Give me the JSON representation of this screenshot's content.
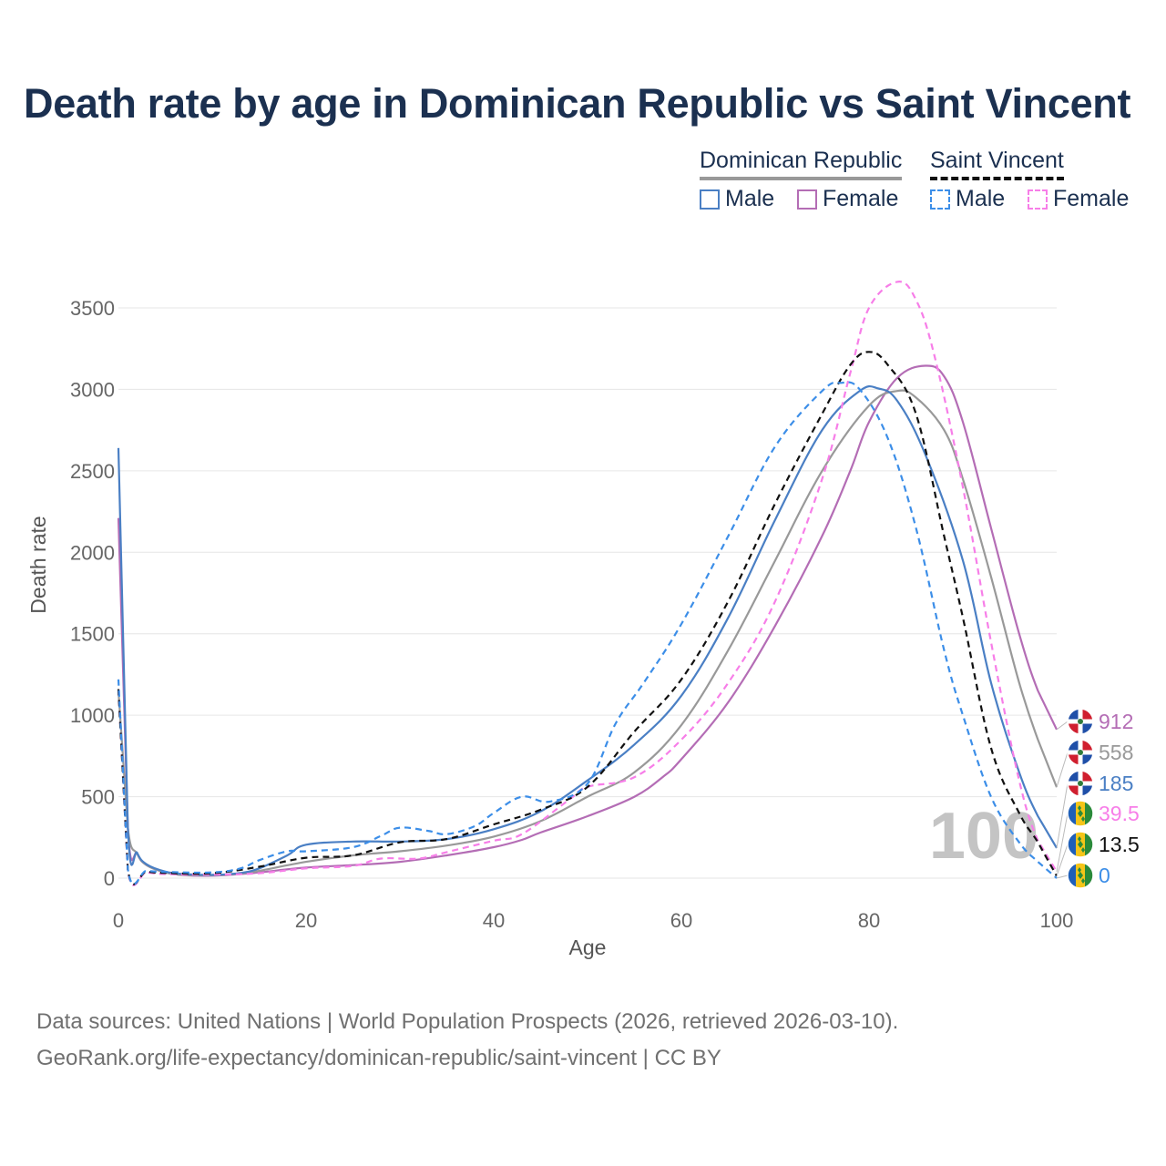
{
  "title": "Death rate by age in Dominican Republic vs Saint Vincent",
  "legend": {
    "groups": [
      {
        "label": "Dominican Republic",
        "line_style": "solid",
        "line_color": "#999999"
      },
      {
        "label": "Saint Vincent",
        "line_style": "dashed",
        "line_color": "#111111"
      }
    ],
    "items": [
      {
        "label": "Male",
        "color": "#4a7fc4",
        "style": "solid"
      },
      {
        "label": "Female",
        "color": "#b46db5",
        "style": "solid"
      },
      {
        "label": "Male",
        "color": "#3c8ee8",
        "style": "dashed"
      },
      {
        "label": "Female",
        "color": "#f77ee8",
        "style": "dashed"
      }
    ]
  },
  "overlay_age": "100",
  "footer": {
    "line1": "Data sources: United Nations | World Population Prospects (2026, retrieved 2026-03-10).",
    "line2": "GeoRank.org/life-expectancy/dominican-republic/saint-vincent | CC BY"
  },
  "chart_data": {
    "type": "line",
    "xlabel": "Age",
    "ylabel": "Death rate",
    "xlim": [
      0,
      100
    ],
    "ylim": [
      0,
      3700
    ],
    "xticks": [
      0,
      20,
      40,
      60,
      80,
      100
    ],
    "yticks": [
      0,
      500,
      1000,
      1500,
      2000,
      2500,
      3000,
      3500
    ],
    "grid": true,
    "series": [
      {
        "name": "Dominican Republic – Female",
        "color": "#b46db5",
        "dash": "",
        "end_label": "912",
        "flag": "dominican-republic",
        "points": [
          [
            0,
            2210
          ],
          [
            1,
            320
          ],
          [
            2,
            150
          ],
          [
            3,
            80
          ],
          [
            5,
            35
          ],
          [
            7,
            18
          ],
          [
            10,
            15
          ],
          [
            13,
            25
          ],
          [
            15,
            35
          ],
          [
            20,
            65
          ],
          [
            25,
            80
          ],
          [
            30,
            100
          ],
          [
            35,
            140
          ],
          [
            40,
            190
          ],
          [
            43,
            235
          ],
          [
            45,
            280
          ],
          [
            50,
            380
          ],
          [
            55,
            500
          ],
          [
            58,
            620
          ],
          [
            60,
            730
          ],
          [
            65,
            1080
          ],
          [
            70,
            1550
          ],
          [
            75,
            2100
          ],
          [
            78,
            2500
          ],
          [
            80,
            2800
          ],
          [
            83,
            3070
          ],
          [
            86,
            3145
          ],
          [
            88,
            3080
          ],
          [
            90,
            2800
          ],
          [
            93,
            2150
          ],
          [
            96,
            1500
          ],
          [
            98,
            1150
          ],
          [
            100,
            912
          ]
        ]
      },
      {
        "name": "Dominican Republic – Both",
        "color": "#999999",
        "dash": "",
        "end_label": "558",
        "flag": "dominican-republic",
        "points": [
          [
            0,
            1150
          ],
          [
            1,
            310
          ],
          [
            2,
            150
          ],
          [
            3,
            80
          ],
          [
            5,
            35
          ],
          [
            7,
            20
          ],
          [
            10,
            18
          ],
          [
            13,
            28
          ],
          [
            15,
            45
          ],
          [
            20,
            100
          ],
          [
            25,
            140
          ],
          [
            30,
            165
          ],
          [
            35,
            200
          ],
          [
            40,
            255
          ],
          [
            45,
            350
          ],
          [
            50,
            500
          ],
          [
            55,
            650
          ],
          [
            60,
            940
          ],
          [
            65,
            1400
          ],
          [
            70,
            1950
          ],
          [
            75,
            2500
          ],
          [
            80,
            2900
          ],
          [
            83,
            2990
          ],
          [
            85,
            2950
          ],
          [
            88,
            2750
          ],
          [
            90,
            2450
          ],
          [
            93,
            1850
          ],
          [
            96,
            1200
          ],
          [
            98,
            850
          ],
          [
            100,
            558
          ]
        ]
      },
      {
        "name": "Dominican Republic – Male",
        "color": "#4a7fc4",
        "dash": "",
        "end_label": "185",
        "flag": "dominican-republic",
        "points": [
          [
            0,
            2640
          ],
          [
            1,
            320
          ],
          [
            2,
            155
          ],
          [
            3,
            85
          ],
          [
            5,
            40
          ],
          [
            7,
            25
          ],
          [
            10,
            20
          ],
          [
            13,
            32
          ],
          [
            15,
            60
          ],
          [
            18,
            140
          ],
          [
            20,
            205
          ],
          [
            25,
            225
          ],
          [
            30,
            225
          ],
          [
            35,
            240
          ],
          [
            40,
            300
          ],
          [
            45,
            410
          ],
          [
            50,
            600
          ],
          [
            55,
            820
          ],
          [
            60,
            1120
          ],
          [
            65,
            1600
          ],
          [
            70,
            2200
          ],
          [
            75,
            2750
          ],
          [
            79,
            2990
          ],
          [
            81,
            3005
          ],
          [
            83,
            2930
          ],
          [
            86,
            2600
          ],
          [
            90,
            1950
          ],
          [
            93,
            1200
          ],
          [
            96,
            650
          ],
          [
            98,
            380
          ],
          [
            100,
            185
          ]
        ]
      },
      {
        "name": "Saint Vincent – Female",
        "color": "#f77ee8",
        "dash": "7,5",
        "end_label": "39.5",
        "flag": "saint-vincent",
        "points": [
          [
            0,
            1160
          ],
          [
            1,
            50
          ],
          [
            3,
            35
          ],
          [
            5,
            25
          ],
          [
            10,
            22
          ],
          [
            15,
            30
          ],
          [
            20,
            60
          ],
          [
            25,
            75
          ],
          [
            28,
            120
          ],
          [
            32,
            120
          ],
          [
            35,
            160
          ],
          [
            40,
            230
          ],
          [
            43,
            270
          ],
          [
            48,
            480
          ],
          [
            50,
            560
          ],
          [
            55,
            620
          ],
          [
            60,
            850
          ],
          [
            65,
            1200
          ],
          [
            70,
            1700
          ],
          [
            75,
            2450
          ],
          [
            78,
            3100
          ],
          [
            80,
            3500
          ],
          [
            83,
            3660
          ],
          [
            85,
            3550
          ],
          [
            87,
            3200
          ],
          [
            90,
            2400
          ],
          [
            93,
            1450
          ],
          [
            96,
            600
          ],
          [
            98,
            230
          ],
          [
            100,
            39.5
          ]
        ]
      },
      {
        "name": "Saint Vincent – Both",
        "color": "#111111",
        "dash": "7,5",
        "end_label": "13.5",
        "flag": "saint-vincent",
        "points": [
          [
            0,
            1160
          ],
          [
            1,
            55
          ],
          [
            3,
            40
          ],
          [
            5,
            32
          ],
          [
            10,
            30
          ],
          [
            15,
            70
          ],
          [
            20,
            125
          ],
          [
            25,
            140
          ],
          [
            30,
            220
          ],
          [
            35,
            240
          ],
          [
            40,
            330
          ],
          [
            45,
            420
          ],
          [
            50,
            560
          ],
          [
            55,
            900
          ],
          [
            60,
            1220
          ],
          [
            65,
            1700
          ],
          [
            70,
            2300
          ],
          [
            75,
            2850
          ],
          [
            78,
            3150
          ],
          [
            80,
            3230
          ],
          [
            82,
            3150
          ],
          [
            85,
            2850
          ],
          [
            88,
            2100
          ],
          [
            90,
            1600
          ],
          [
            93,
            800
          ],
          [
            96,
            400
          ],
          [
            98,
            220
          ],
          [
            100,
            13.5
          ]
        ]
      },
      {
        "name": "Saint Vincent – Male",
        "color": "#3c8ee8",
        "dash": "7,5",
        "end_label": "0",
        "flag": "saint-vincent",
        "points": [
          [
            0,
            1220
          ],
          [
            1,
            60
          ],
          [
            3,
            45
          ],
          [
            5,
            38
          ],
          [
            10,
            35
          ],
          [
            13,
            60
          ],
          [
            15,
            110
          ],
          [
            18,
            165
          ],
          [
            20,
            165
          ],
          [
            25,
            190
          ],
          [
            28,
            260
          ],
          [
            30,
            310
          ],
          [
            33,
            290
          ],
          [
            35,
            270
          ],
          [
            38,
            320
          ],
          [
            40,
            400
          ],
          [
            43,
            500
          ],
          [
            46,
            470
          ],
          [
            50,
            580
          ],
          [
            53,
            950
          ],
          [
            56,
            1200
          ],
          [
            60,
            1560
          ],
          [
            65,
            2100
          ],
          [
            70,
            2650
          ],
          [
            75,
            2990
          ],
          [
            77,
            3040
          ],
          [
            79,
            3000
          ],
          [
            82,
            2700
          ],
          [
            85,
            2150
          ],
          [
            88,
            1400
          ],
          [
            90,
            1000
          ],
          [
            93,
            500
          ],
          [
            96,
            220
          ],
          [
            98,
            100
          ],
          [
            100,
            0
          ]
        ]
      }
    ]
  }
}
